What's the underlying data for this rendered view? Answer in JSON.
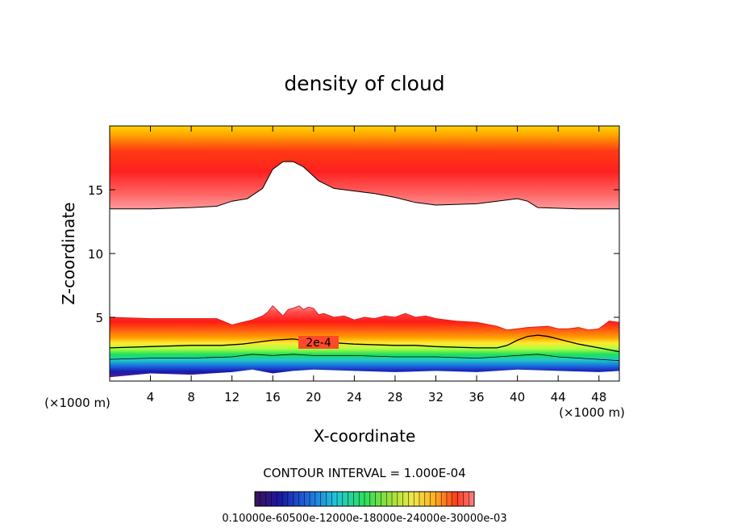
{
  "chart_data": {
    "type": "heatmap",
    "title": "density of cloud",
    "xlabel": "X-coordinate",
    "ylabel": "Z-coordinate",
    "x_unit": "(×1000 m)",
    "y_unit": "(×1000 m)",
    "xlim": [
      0,
      50
    ],
    "ylim": [
      0,
      20
    ],
    "x_ticks": [
      4,
      8,
      12,
      16,
      20,
      24,
      28,
      32,
      36,
      40,
      44,
      48
    ],
    "y_ticks": [
      5,
      10,
      15
    ],
    "grid": false,
    "contour_interval_label": "CONTOUR INTERVAL = 1.000E-04",
    "contour_label": "2e-4",
    "colorbar": {
      "label_text": "0.10000e-60500e-12000e-18000e-24000e-30000e-03",
      "colors": [
        "#3d1159",
        "#1a1aa8",
        "#1f6fe0",
        "#22c6d6",
        "#2ede5c",
        "#9fe03a",
        "#f0e84a",
        "#ffb020",
        "#ff3a1e",
        "#ff8080"
      ]
    },
    "upper_layer": {
      "top_z": 20,
      "boundary": [
        [
          0,
          13.5
        ],
        [
          4,
          13.5
        ],
        [
          8,
          13.6
        ],
        [
          10.5,
          13.7
        ],
        [
          12,
          14.1
        ],
        [
          13.5,
          14.3
        ],
        [
          15,
          15.1
        ],
        [
          16,
          16.6
        ],
        [
          17,
          17.2
        ],
        [
          18,
          17.2
        ],
        [
          19,
          16.8
        ],
        [
          20.5,
          15.7
        ],
        [
          22,
          15.1
        ],
        [
          24,
          14.9
        ],
        [
          26,
          14.7
        ],
        [
          28,
          14.4
        ],
        [
          30,
          14.0
        ],
        [
          32,
          13.8
        ],
        [
          36,
          13.9
        ],
        [
          38,
          14.1
        ],
        [
          40,
          14.3
        ],
        [
          41,
          14.1
        ],
        [
          42,
          13.6
        ],
        [
          46,
          13.5
        ],
        [
          50,
          13.5
        ]
      ]
    },
    "lower_layer": {
      "top_boundary": [
        [
          0,
          5.0
        ],
        [
          4,
          4.9
        ],
        [
          8,
          4.9
        ],
        [
          10.5,
          4.9
        ],
        [
          12,
          4.4
        ],
        [
          13,
          4.6
        ],
        [
          14,
          4.8
        ],
        [
          15,
          5.1
        ],
        [
          15.5,
          5.4
        ],
        [
          16,
          5.9
        ],
        [
          16.5,
          5.5
        ],
        [
          17,
          5.1
        ],
        [
          17.5,
          5.6
        ],
        [
          18,
          5.7
        ],
        [
          18.6,
          5.9
        ],
        [
          19,
          5.6
        ],
        [
          19.5,
          5.8
        ],
        [
          20,
          5.7
        ],
        [
          20.5,
          5.2
        ],
        [
          21,
          5.3
        ],
        [
          22,
          5.0
        ],
        [
          23,
          5.1
        ],
        [
          24,
          4.8
        ],
        [
          25,
          5.0
        ],
        [
          26,
          4.9
        ],
        [
          27,
          5.1
        ],
        [
          28,
          5.0
        ],
        [
          29,
          5.3
        ],
        [
          30,
          5.0
        ],
        [
          31,
          5.1
        ],
        [
          32,
          4.9
        ],
        [
          33,
          4.8
        ],
        [
          34,
          4.7
        ],
        [
          36,
          4.6
        ],
        [
          38,
          4.3
        ],
        [
          39,
          4.0
        ],
        [
          40,
          4.1
        ],
        [
          41,
          4.2
        ],
        [
          43,
          4.3
        ],
        [
          44,
          4.1
        ],
        [
          45,
          4.1
        ],
        [
          46,
          4.2
        ],
        [
          47,
          4.0
        ],
        [
          48,
          4.1
        ],
        [
          48.5,
          4.4
        ],
        [
          49,
          4.7
        ],
        [
          50,
          4.6
        ]
      ],
      "contour_2e4": [
        [
          0,
          2.6
        ],
        [
          4,
          2.7
        ],
        [
          8,
          2.8
        ],
        [
          11,
          2.8
        ],
        [
          13,
          2.9
        ],
        [
          14,
          3.0
        ],
        [
          15,
          3.1
        ],
        [
          16,
          3.2
        ],
        [
          18,
          3.3
        ],
        [
          20,
          3.1
        ],
        [
          24,
          2.9
        ],
        [
          28,
          2.8
        ],
        [
          30,
          2.8
        ],
        [
          32,
          2.7
        ],
        [
          36,
          2.6
        ],
        [
          38,
          2.6
        ],
        [
          39,
          2.8
        ],
        [
          40,
          3.2
        ],
        [
          41,
          3.5
        ],
        [
          42,
          3.6
        ],
        [
          43,
          3.5
        ],
        [
          44,
          3.3
        ],
        [
          46,
          2.9
        ],
        [
          48,
          2.6
        ],
        [
          50,
          2.3
        ]
      ],
      "contour_low": [
        [
          0,
          1.7
        ],
        [
          4,
          1.8
        ],
        [
          8,
          1.8
        ],
        [
          12,
          1.9
        ],
        [
          14,
          2.1
        ],
        [
          16,
          2.0
        ],
        [
          18,
          2.1
        ],
        [
          20,
          2.0
        ],
        [
          24,
          2.0
        ],
        [
          28,
          1.9
        ],
        [
          32,
          1.9
        ],
        [
          36,
          1.8
        ],
        [
          40,
          2.0
        ],
        [
          42,
          2.1
        ],
        [
          44,
          1.9
        ],
        [
          48,
          1.7
        ],
        [
          50,
          1.6
        ]
      ],
      "base": [
        [
          0,
          0.3
        ],
        [
          4,
          0.6
        ],
        [
          8,
          0.5
        ],
        [
          12,
          0.7
        ],
        [
          14,
          0.9
        ],
        [
          16,
          0.6
        ],
        [
          18,
          0.8
        ],
        [
          20,
          0.9
        ],
        [
          24,
          0.8
        ],
        [
          28,
          0.7
        ],
        [
          32,
          0.8
        ],
        [
          36,
          0.7
        ],
        [
          40,
          0.9
        ],
        [
          44,
          0.8
        ],
        [
          48,
          0.7
        ],
        [
          50,
          0.8
        ]
      ]
    }
  }
}
